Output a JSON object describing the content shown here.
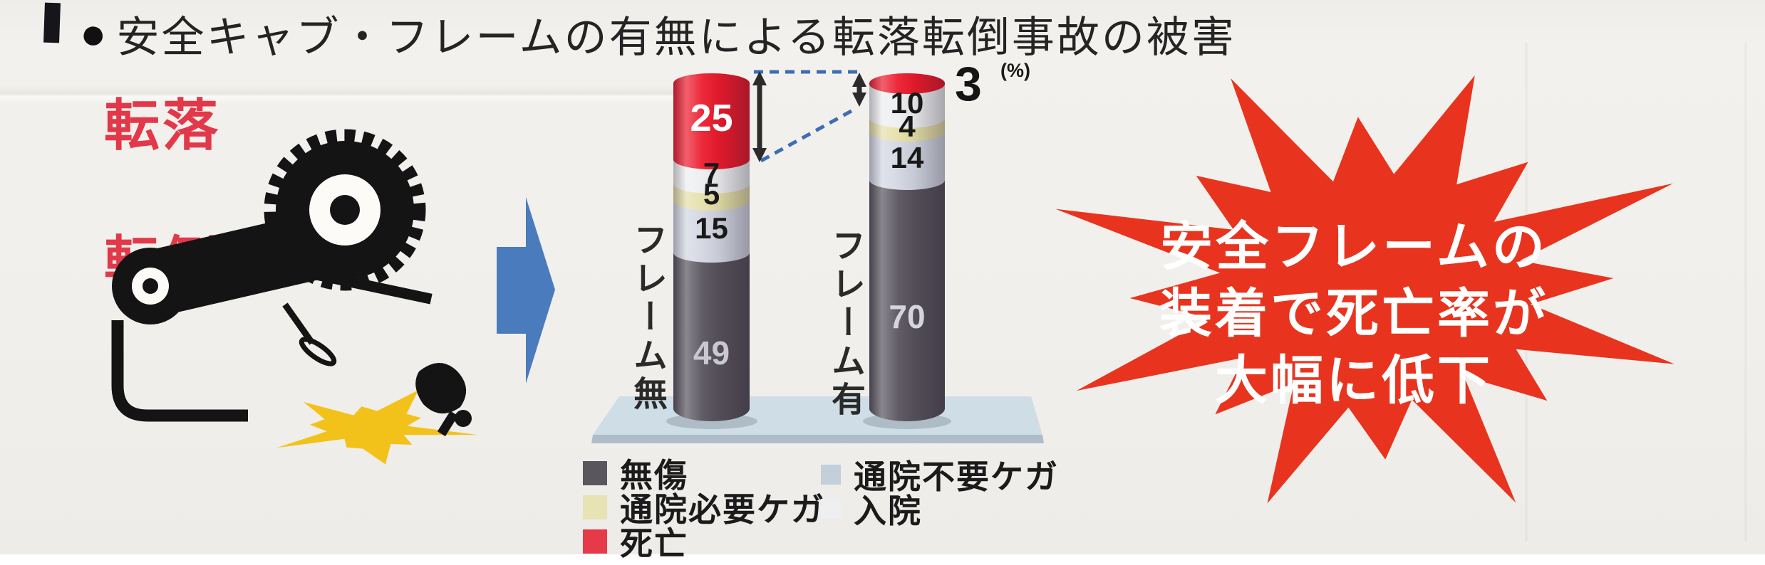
{
  "page": {
    "type": "scanned-leaflet",
    "background": "#f1efeb"
  },
  "header": {
    "bullet": "●",
    "title": "安全キャブ・フレームの有無による転落転倒事故の被害"
  },
  "accident_label": {
    "line1": "転落",
    "line2": "転倒",
    "color": "#e2394a"
  },
  "illustration": {
    "tractor_icon": "overturned-tractor-icon",
    "crash_icon": "crash-burst-icon",
    "crash_color": "#f2c21b",
    "arrow_icon": "right-arrow-icon",
    "arrow_color": "#4a7bbd"
  },
  "chart_data": {
    "type": "bar",
    "subtype": "stacked-cylinder-percentage",
    "unit_label": "(%)",
    "categories": [
      "フレーム無",
      "フレーム有"
    ],
    "series": [
      {
        "name": "死亡",
        "color": "#ec1b2d",
        "values": [
          25,
          3
        ]
      },
      {
        "name": "入院",
        "color": "#edeef0",
        "values": [
          7,
          10
        ]
      },
      {
        "name": "通院必要ケガ",
        "color": "#e5dfa8",
        "values": [
          5,
          4
        ]
      },
      {
        "name": "通院不要ケガ",
        "color": "#d3d6e2",
        "values": [
          15,
          14
        ]
      },
      {
        "name": "無傷",
        "color": "#57525c",
        "values": [
          49,
          70
        ]
      }
    ],
    "annotation": {
      "type": "comparison-arrows",
      "series": "死亡",
      "values": [
        25,
        3
      ],
      "line_style": "blue-dashed"
    },
    "legend_position": "bottom"
  },
  "legend": {
    "col1": [
      {
        "label": "無傷",
        "color": "#5a565e"
      },
      {
        "label": "通院必要ケガ",
        "color": "#e7e3b4"
      },
      {
        "label": "死亡",
        "color": "#e63a48"
      }
    ],
    "col2": [
      {
        "label": "通院不要ケガ",
        "color": "#c3d0dc"
      },
      {
        "label": "入院",
        "color": "#edeff1"
      }
    ]
  },
  "callout": {
    "lines": [
      "安全フレームの",
      "装着で死亡率が",
      "大幅に低下"
    ],
    "background": "#e8341e",
    "text_color": "#ffffff"
  }
}
